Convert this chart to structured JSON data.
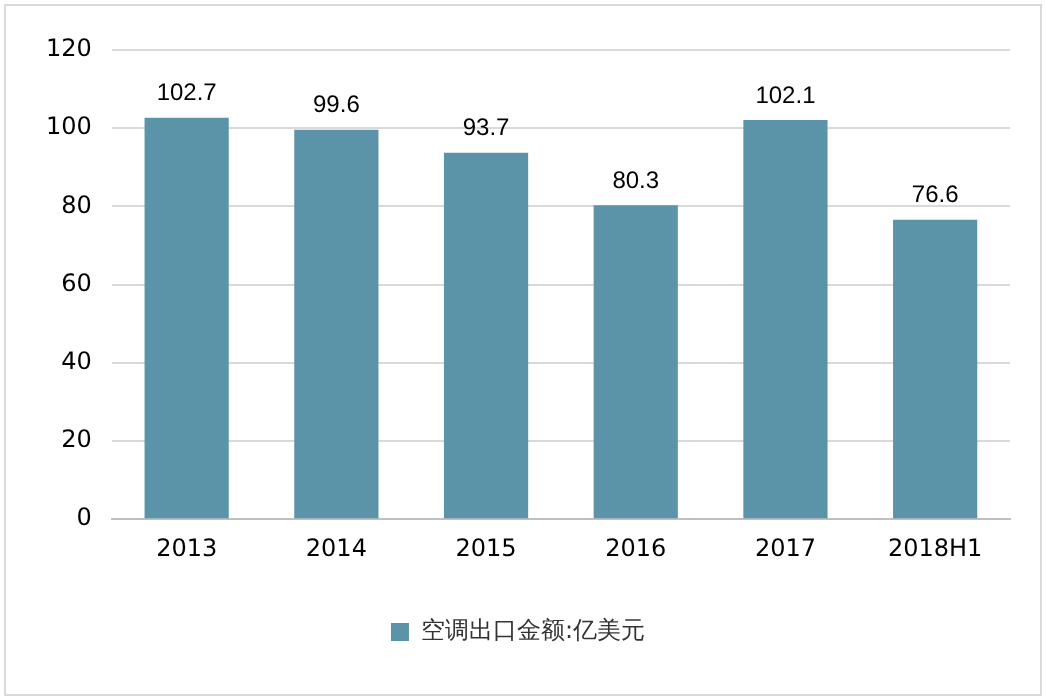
{
  "chart_data": {
    "type": "bar",
    "categories": [
      "2013",
      "2014",
      "2015",
      "2016",
      "2017",
      "2018H1"
    ],
    "series": [
      {
        "name": "空调出口金额:亿美元",
        "color": "#5b93a8",
        "values": [
          102.7,
          99.6,
          93.7,
          80.3,
          102.1,
          76.6
        ]
      }
    ],
    "ylim": [
      0,
      120
    ],
    "yticks": [
      0,
      20,
      40,
      60,
      80,
      100,
      120
    ],
    "grid": "y",
    "legend": "bottom",
    "data_labels": true
  }
}
